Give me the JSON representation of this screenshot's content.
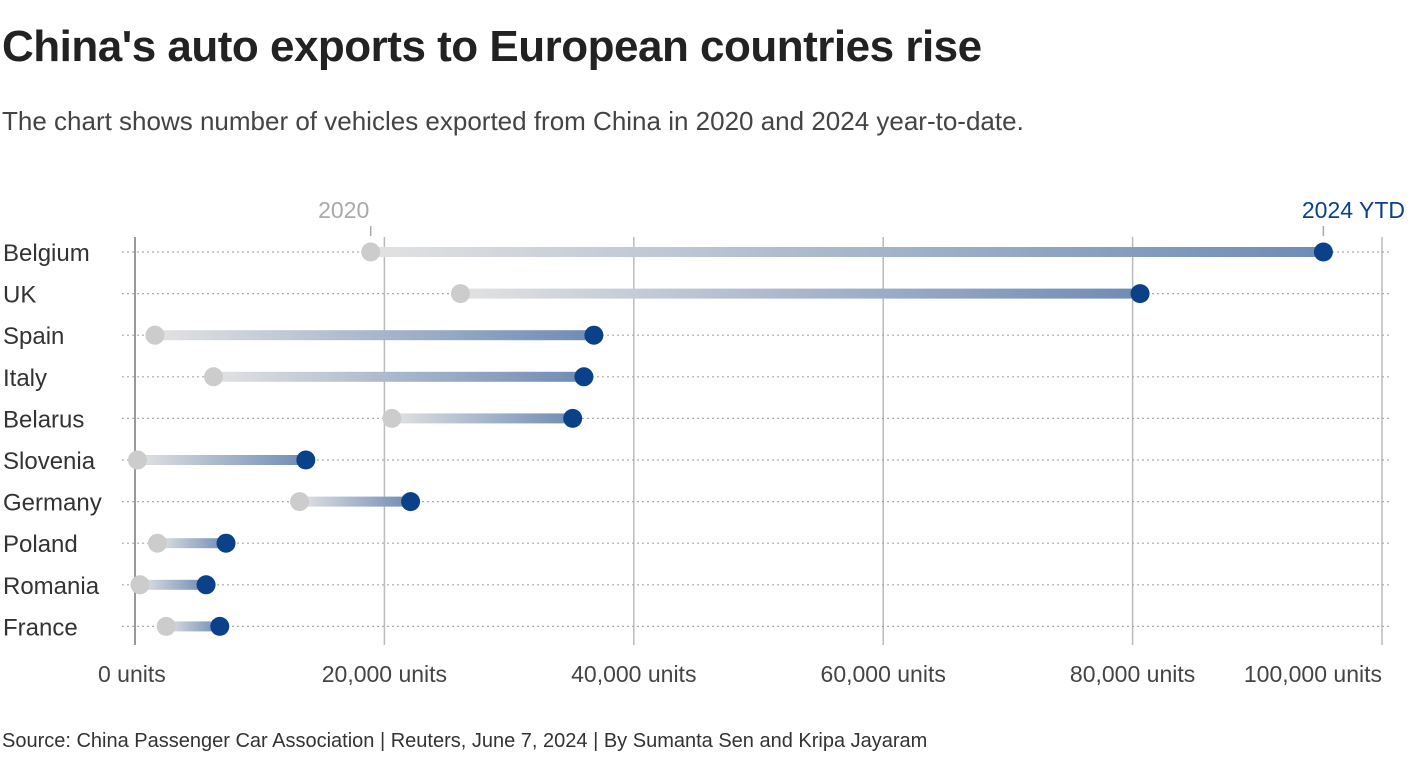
{
  "title": "China's auto exports to European countries rise",
  "subtitle": "The chart shows number of vehicles exported from China in 2020 and 2024 year-to-date.",
  "source": "Source: China Passenger Car Association | Reuters, June 7, 2024 | By Sumanta Sen and Kripa Jayaram",
  "chart_data": {
    "type": "dumbbell",
    "title": "China's auto exports to European countries rise",
    "xlim": [
      0,
      100000
    ],
    "x_ticks": [
      0,
      20000,
      40000,
      60000,
      80000,
      100000
    ],
    "x_tick_labels": [
      "0 units",
      "20,000 units",
      "40,000 units",
      "60,000 units",
      "80,000 units",
      "100,000 units"
    ],
    "grid": true,
    "categories": [
      "Belgium",
      "UK",
      "Spain",
      "Italy",
      "Belarus",
      "Slovenia",
      "Germany",
      "Poland",
      "Romania",
      "France"
    ],
    "series": [
      {
        "name": "2020",
        "color": "#cccccc",
        "values": [
          18900,
          26100,
          1600,
          6300,
          20600,
          200,
          13200,
          1800,
          400,
          2500
        ]
      },
      {
        "name": "2024 YTD",
        "color": "#0b4189",
        "values": [
          95300,
          80600,
          36800,
          36000,
          35100,
          13700,
          22100,
          7300,
          5700,
          6800
        ]
      }
    ]
  }
}
